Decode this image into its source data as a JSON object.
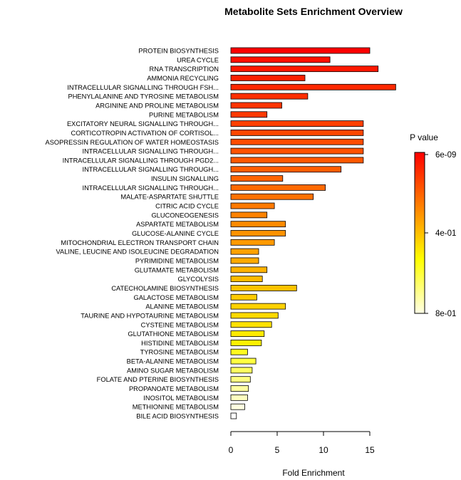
{
  "chart_data": {
    "type": "bar",
    "orientation": "horizontal",
    "title": "Metabolite Sets Enrichment Overview",
    "xlabel": "Fold Enrichment",
    "ylabel": "",
    "xlim": [
      0,
      17.8
    ],
    "xticks": [
      0,
      5,
      10,
      15
    ],
    "grid": false,
    "legend": {
      "title": "P value",
      "placement": "right",
      "labels": [
        "6e-09",
        "4e-01",
        "8e-01"
      ],
      "colors": [
        "#ff0000",
        "#ff8000",
        "#ffff00",
        "#ffffe6"
      ]
    },
    "categories": [
      "PROTEIN BIOSYNTHESIS",
      "UREA CYCLE",
      "RNA TRANSCRIPTION",
      "AMMONIA RECYCLING",
      "INTRACELLULAR SIGNALLING THROUGH FSH...",
      "PHENYLALANINE AND TYROSINE METABOLISM",
      "ARGININE AND PROLINE METABOLISM",
      "PURINE METABOLISM",
      "EXCITATORY NEURAL SIGNALLING THROUGH...",
      "CORTICOTROPIN ACTIVATION OF CORTISOL...",
      "ASOPRESSIN REGULATION OF WATER HOMEOSTASIS",
      "INTRACELLULAR SIGNALLING THROUGH...",
      "INTRACELLULAR SIGNALLING THROUGH PGD2...",
      "INTRACELLULAR SIGNALLING THROUGH...",
      "INSULIN SIGNALLING",
      "INTRACELLULAR SIGNALLING THROUGH...",
      "MALATE-ASPARTATE SHUTTLE",
      "CITRIC ACID CYCLE",
      "GLUCONEOGENESIS",
      "ASPARTATE METABOLISM",
      "GLUCOSE-ALANINE CYCLE",
      "MITOCHONDRIAL ELECTRON TRANSPORT CHAIN",
      "VALINE, LEUCINE AND ISOLEUCINE DEGRADATION",
      "PYRIMIDINE METABOLISM",
      "GLUTAMATE METABOLISM",
      "GLYCOLYSIS",
      "CATECHOLAMINE BIOSYNTHESIS",
      "GALACTOSE METABOLISM",
      "ALANINE METABOLISM",
      "TAURINE AND HYPOTAURINE METABOLISM",
      "CYSTEINE METABOLISM",
      "GLUTATHIONE METABOLISM",
      "HISTIDINE METABOLISM",
      "TYROSINE METABOLISM",
      "BETA-ALANINE METABOLISM",
      "AMINO SUGAR METABOLISM",
      "FOLATE AND PTERINE BIOSYNTHESIS",
      "PROPANOATE METABOLISM",
      "INOSITOL METABOLISM",
      "METHIONINE METABOLISM",
      "BILE ACID BIOSYNTHESIS"
    ],
    "values": [
      15.0,
      10.7,
      15.9,
      8.0,
      17.8,
      8.3,
      5.5,
      3.9,
      14.3,
      14.3,
      14.3,
      14.3,
      14.3,
      11.9,
      5.6,
      10.2,
      8.9,
      4.7,
      3.9,
      5.9,
      5.9,
      4.7,
      3.0,
      3.0,
      3.9,
      3.4,
      7.1,
      2.8,
      5.9,
      5.1,
      4.4,
      3.6,
      3.3,
      1.8,
      2.7,
      2.3,
      2.1,
      1.9,
      1.8,
      1.5,
      0.6
    ],
    "bar_colors": [
      "#ff0000",
      "#ff1000",
      "#ff1800",
      "#ff2000",
      "#ff2800",
      "#ff2e00",
      "#ff3400",
      "#ff3a00",
      "#ff4000",
      "#ff4600",
      "#ff4c00",
      "#ff5200",
      "#ff5800",
      "#ff5e00",
      "#ff6400",
      "#ff6a00",
      "#ff7200",
      "#ff7a00",
      "#ff8200",
      "#ff8a00",
      "#ff9200",
      "#ff9a00",
      "#ffa200",
      "#ffaa00",
      "#ffb200",
      "#ffba00",
      "#ffc200",
      "#ffca00",
      "#ffd200",
      "#ffda00",
      "#ffe200",
      "#ffea00",
      "#fff200",
      "#fffa20",
      "#ffff40",
      "#ffff60",
      "#ffff80",
      "#ffffa0",
      "#ffffc0",
      "#ffffe0",
      "#ffffff"
    ]
  }
}
